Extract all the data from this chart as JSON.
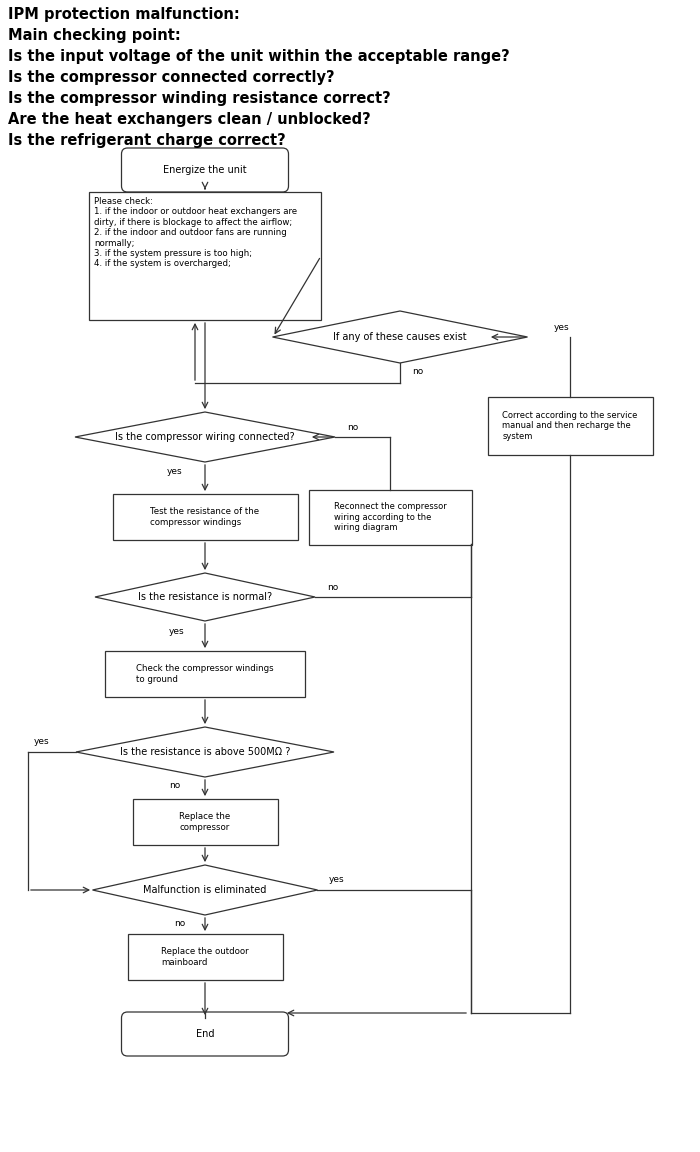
{
  "title_lines": [
    "IPM protection malfunction:",
    "Main checking point:",
    "Is the input voltage of the unit within the acceptable range?",
    "Is the compressor connected correctly?",
    "Is the compressor winding resistance correct?",
    "Are the heat exchangers clean / unblocked?",
    "Is the refrigerant charge correct?"
  ],
  "bg_color": "#ffffff",
  "box_edge_color": "#333333",
  "text_color": "#000000",
  "arrow_color": "#333333",
  "title_color": "#000000",
  "font_size_title": 10.5,
  "font_size_box": 7.0,
  "font_size_label": 6.5,
  "lw": 0.9
}
